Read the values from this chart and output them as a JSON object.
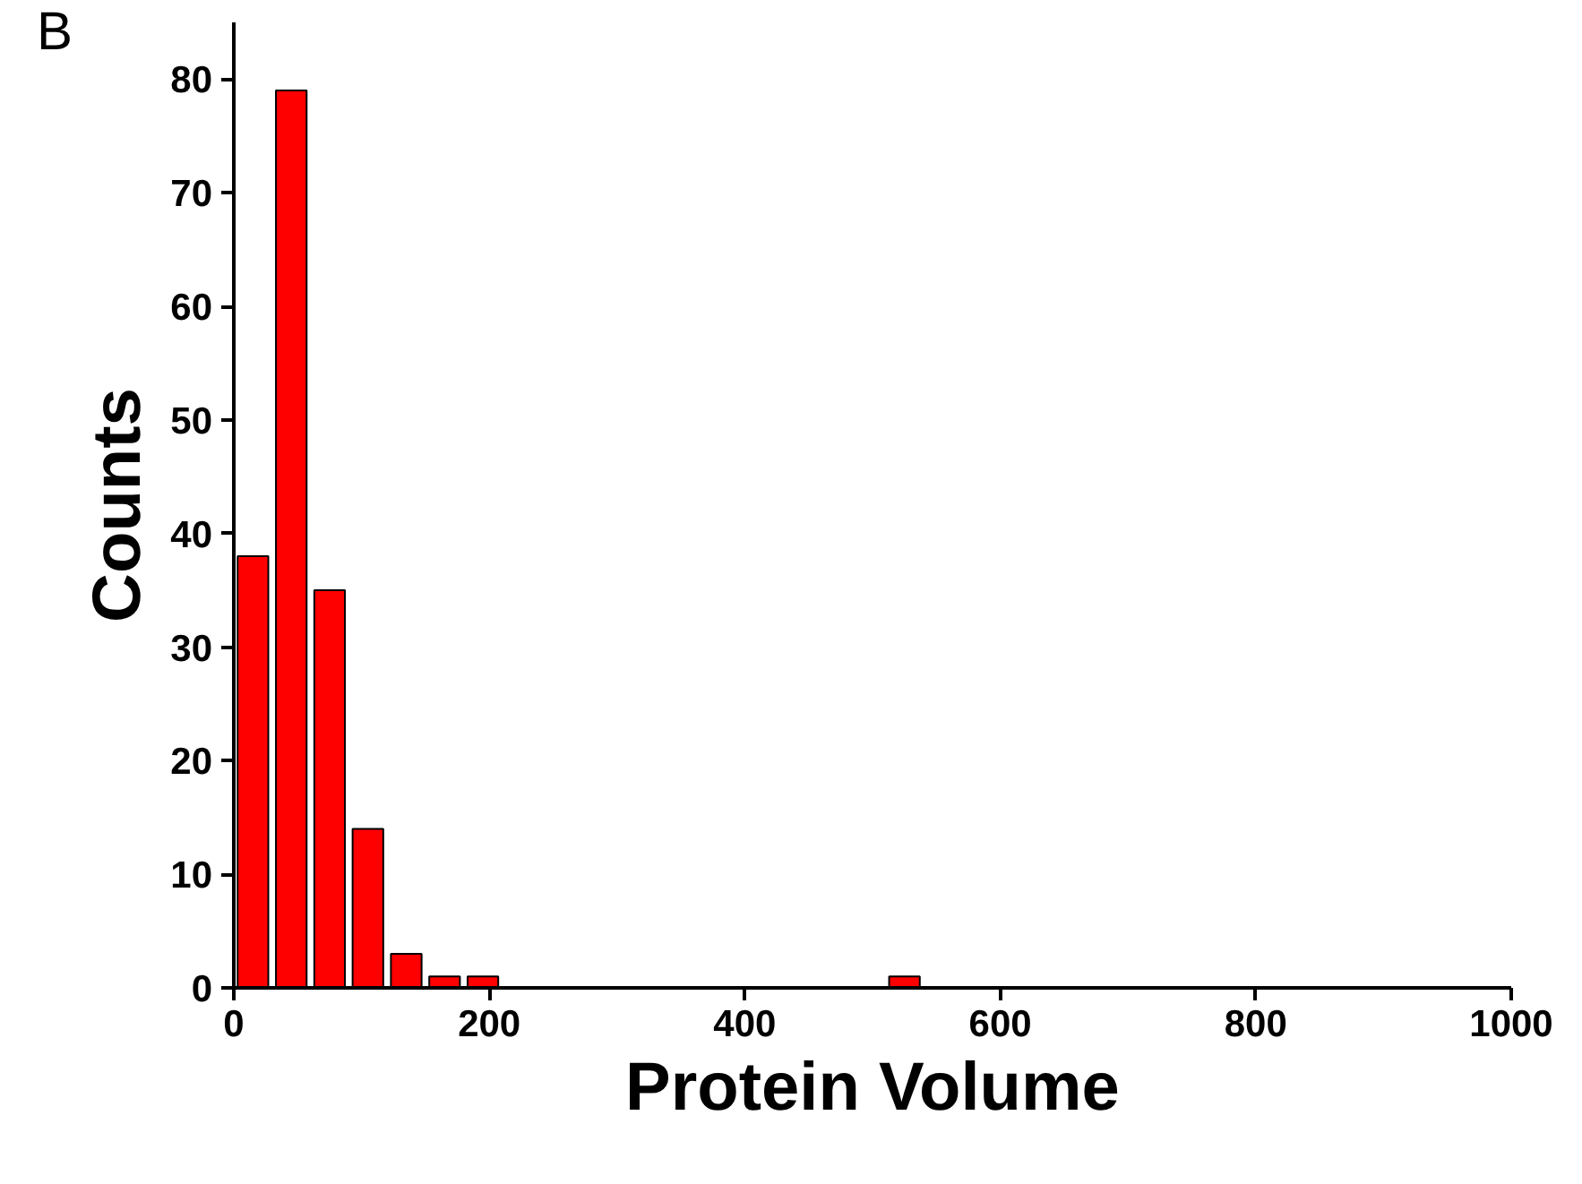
{
  "chart_data": {
    "type": "histogram",
    "xlabel": "Protein Volume",
    "ylabel": "Counts",
    "annotations": [
      "B"
    ],
    "bins": [
      0,
      30,
      60,
      90,
      120,
      150,
      180,
      210,
      240,
      270,
      300,
      330,
      360,
      390,
      420,
      450,
      480,
      510,
      540
    ],
    "values": [
      38,
      79,
      35,
      14,
      3,
      1,
      1,
      0,
      0,
      0,
      0,
      0,
      0,
      0,
      0,
      0,
      0,
      1
    ],
    "color": "#ff0000",
    "xlim": [
      0,
      1000
    ],
    "xticks": [
      0,
      200,
      400,
      600,
      800,
      1000
    ],
    "ylim": [
      0,
      85
    ],
    "yticks": [
      0,
      10,
      20,
      30,
      40,
      50,
      60,
      70,
      80
    ],
    "grid": false
  }
}
